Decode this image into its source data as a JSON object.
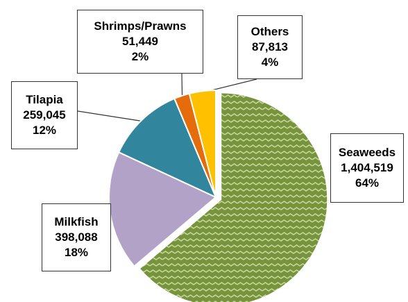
{
  "chart_data": {
    "type": "pie",
    "slices": [
      {
        "label": "Seaweeds",
        "value": 1404519,
        "value_label": "1,404,519",
        "percent_label": "64%",
        "color": "#77933c",
        "pattern": "wave"
      },
      {
        "label": "Milkfish",
        "value": 398088,
        "value_label": "398,088",
        "percent_label": "18%",
        "color": "#b3a2c7"
      },
      {
        "label": "Tilapia",
        "value": 259045,
        "value_label": "259,045",
        "percent_label": "12%",
        "color": "#31859c"
      },
      {
        "label": "Shrimps/Prawns",
        "value": 51449,
        "value_label": "51,449",
        "percent_label": "2%",
        "color": "#e46c0a"
      },
      {
        "label": "Others",
        "value": 87813,
        "value_label": "87,813",
        "percent_label": "4%",
        "color": "#ffc000"
      }
    ],
    "exploded": [
      "Seaweeds"
    ],
    "start_angle_deg": 0,
    "direction": "clockwise",
    "legend": "none"
  }
}
